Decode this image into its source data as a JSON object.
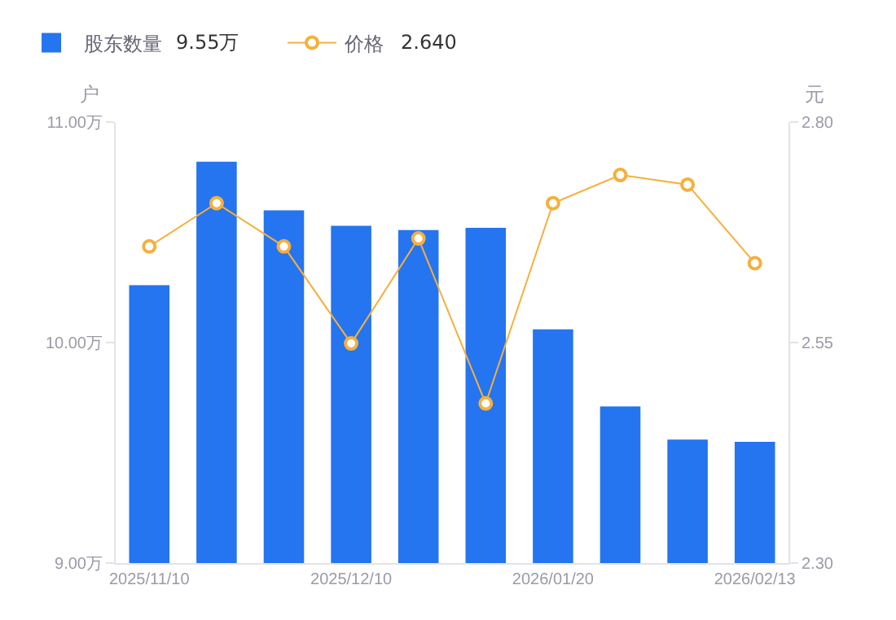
{
  "chart_data": {
    "type": "bar",
    "categories": [
      "2025/11/10",
      null,
      null,
      "2025/12/10",
      null,
      null,
      "2026/01/20",
      null,
      null,
      "2026/02/13"
    ],
    "ylabel": "户",
    "y2label": "元",
    "ylim": [
      9.0,
      11.0
    ],
    "yticks": [
      {
        "value": 9.0,
        "label": "9.00万"
      },
      {
        "value": 10.0,
        "label": "10.00万"
      },
      {
        "value": 11.0,
        "label": "11.00万"
      }
    ],
    "y2lim": [
      2.3,
      2.8
    ],
    "y2ticks": [
      {
        "value": 2.3,
        "label": "2.30"
      },
      {
        "value": 2.55,
        "label": "2.55"
      },
      {
        "value": 2.8,
        "label": "2.80"
      }
    ],
    "series": [
      {
        "name": "股东数量",
        "color": "#2574f0",
        "values": [
          10.26,
          10.82,
          10.6,
          10.53,
          10.51,
          10.52,
          10.06,
          9.71,
          9.56,
          9.55
        ]
      },
      {
        "name": "价格",
        "type": "line",
        "axis": "y2",
        "color": "#f5b03c",
        "marker": "circle",
        "values": [
          2.659,
          2.708,
          2.659,
          2.549,
          2.668,
          2.481,
          2.708,
          2.74,
          2.729,
          2.64
        ]
      }
    ],
    "annotations": [
      "9.55万",
      "2.640"
    ],
    "legend": "top left"
  }
}
